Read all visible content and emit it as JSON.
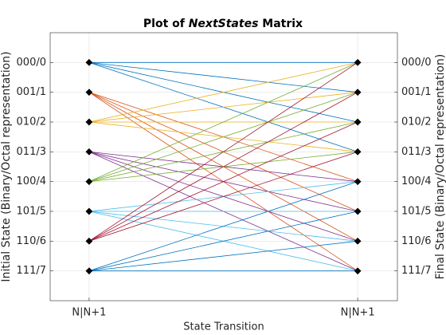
{
  "chart_data": {
    "type": "line",
    "title": [
      "Plot of ",
      "NextStates",
      " Matrix"
    ],
    "xlabel": "State Transition",
    "ylabel": "Initial State (Binary/Octal representation)",
    "y2label": "Final State (Binary/Octal representation)",
    "x": [
      1,
      2
    ],
    "xlim": [
      0.855,
      2.148
    ],
    "xticks": [
      {
        "value": 1,
        "label": "N|N+1"
      },
      {
        "value": 2,
        "label": "N|N+1"
      }
    ],
    "ylim": [
      -1,
      8
    ],
    "yticks": [
      {
        "value": 0,
        "label": "000/0"
      },
      {
        "value": 1,
        "label": "001/1"
      },
      {
        "value": 2,
        "label": "010/2"
      },
      {
        "value": 3,
        "label": "011/3"
      },
      {
        "value": 4,
        "label": "100/4"
      },
      {
        "value": 5,
        "label": "101/5"
      },
      {
        "value": 6,
        "label": "110/6"
      },
      {
        "value": 7,
        "label": "111/7"
      }
    ],
    "y2lim": [
      -1,
      8
    ],
    "y2ticks": [
      {
        "value": 0,
        "label": "000/0"
      },
      {
        "value": 1,
        "label": "001/1"
      },
      {
        "value": 2,
        "label": "010/2"
      },
      {
        "value": 3,
        "label": "011/3"
      },
      {
        "value": 4,
        "label": "100/4"
      },
      {
        "value": 5,
        "label": "101/5"
      },
      {
        "value": 6,
        "label": "110/6"
      },
      {
        "value": 7,
        "label": "111/7"
      }
    ],
    "y_reversed": true,
    "grid": true,
    "marker_color": "#000000",
    "series": [
      {
        "color": "#0072BD",
        "values": [
          0,
          0
        ]
      },
      {
        "color": "#0072BD",
        "values": [
          0,
          1
        ]
      },
      {
        "color": "#0072BD",
        "values": [
          0,
          2
        ]
      },
      {
        "color": "#0072BD",
        "values": [
          0,
          3
        ]
      },
      {
        "color": "#D95319",
        "values": [
          1,
          4
        ]
      },
      {
        "color": "#D95319",
        "values": [
          1,
          5
        ]
      },
      {
        "color": "#D95319",
        "values": [
          1,
          6
        ]
      },
      {
        "color": "#D95319",
        "values": [
          1,
          7
        ]
      },
      {
        "color": "#EDB120",
        "values": [
          2,
          0
        ]
      },
      {
        "color": "#EDB120",
        "values": [
          2,
          1
        ]
      },
      {
        "color": "#EDB120",
        "values": [
          2,
          2
        ]
      },
      {
        "color": "#EDB120",
        "values": [
          2,
          3
        ]
      },
      {
        "color": "#7E2F8E",
        "values": [
          3,
          4
        ]
      },
      {
        "color": "#7E2F8E",
        "values": [
          3,
          5
        ]
      },
      {
        "color": "#7E2F8E",
        "values": [
          3,
          6
        ]
      },
      {
        "color": "#7E2F8E",
        "values": [
          3,
          7
        ]
      },
      {
        "color": "#77AC30",
        "values": [
          4,
          0
        ]
      },
      {
        "color": "#77AC30",
        "values": [
          4,
          1
        ]
      },
      {
        "color": "#77AC30",
        "values": [
          4,
          2
        ]
      },
      {
        "color": "#77AC30",
        "values": [
          4,
          3
        ]
      },
      {
        "color": "#4DBEEE",
        "values": [
          5,
          4
        ]
      },
      {
        "color": "#4DBEEE",
        "values": [
          5,
          5
        ]
      },
      {
        "color": "#4DBEEE",
        "values": [
          5,
          6
        ]
      },
      {
        "color": "#4DBEEE",
        "values": [
          5,
          7
        ]
      },
      {
        "color": "#A2142F",
        "values": [
          6,
          0
        ]
      },
      {
        "color": "#A2142F",
        "values": [
          6,
          1
        ]
      },
      {
        "color": "#A2142F",
        "values": [
          6,
          2
        ]
      },
      {
        "color": "#A2142F",
        "values": [
          6,
          3
        ]
      },
      {
        "color": "#0072BD",
        "values": [
          7,
          4
        ]
      },
      {
        "color": "#0072BD",
        "values": [
          7,
          5
        ]
      },
      {
        "color": "#0072BD",
        "values": [
          7,
          6
        ]
      },
      {
        "color": "#0072BD",
        "values": [
          7,
          7
        ]
      }
    ]
  }
}
